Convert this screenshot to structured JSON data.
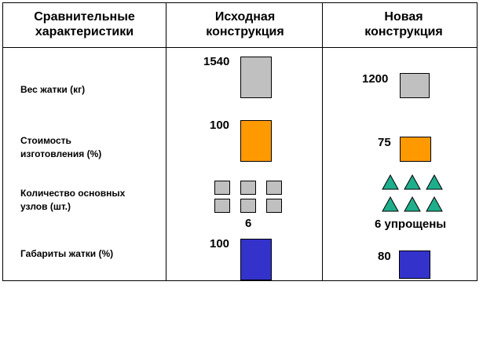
{
  "headers": {
    "col1": "Сравнительные характеристики",
    "col2": "Исходная конструкция",
    "col3": "Новая конструкция"
  },
  "rows": [
    {
      "label": "Вес жатки (кг)",
      "original": "1540",
      "new": "1200"
    },
    {
      "label": "Стоимость изготовления (%)",
      "original": "100",
      "new": "75"
    },
    {
      "label": "Количество основных узлов (шт.)",
      "original": "6",
      "new": "6 упрощены"
    },
    {
      "label": "Габариты жатки (%)",
      "original": "100",
      "new": "80"
    }
  ],
  "colors": {
    "weight": "#c0c0c0",
    "cost": "#ff9900",
    "nodes_original": "#c0c0c0",
    "nodes_new": "#1fae8c",
    "size": "#3333cc"
  },
  "icons": {
    "nodes_original": "gray-square",
    "nodes_new": "green-triangle"
  }
}
